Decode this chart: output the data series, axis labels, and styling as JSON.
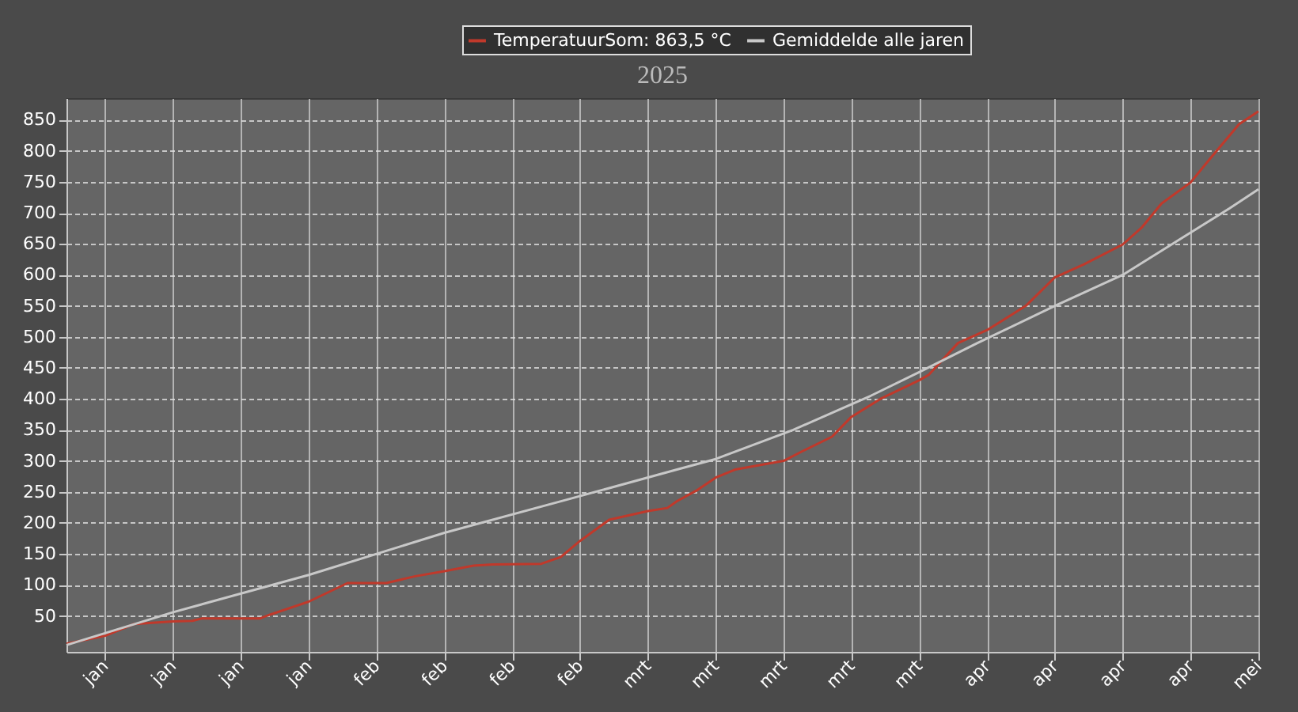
{
  "chart_data": {
    "type": "line",
    "title": "2025",
    "xlim": [
      "2025-01-01",
      "2025-05-04"
    ],
    "ylim": [
      -8,
      885
    ],
    "xticks": [
      {
        "value": "2025-01-05",
        "label": "jan"
      },
      {
        "value": "2025-01-12",
        "label": "jan"
      },
      {
        "value": "2025-01-19",
        "label": "jan"
      },
      {
        "value": "2025-01-26",
        "label": "jan"
      },
      {
        "value": "2025-02-02",
        "label": "feb"
      },
      {
        "value": "2025-02-09",
        "label": "feb"
      },
      {
        "value": "2025-02-16",
        "label": "feb"
      },
      {
        "value": "2025-02-23",
        "label": "feb"
      },
      {
        "value": "2025-03-02",
        "label": "mrt"
      },
      {
        "value": "2025-03-09",
        "label": "mrt"
      },
      {
        "value": "2025-03-16",
        "label": "mrt"
      },
      {
        "value": "2025-03-23",
        "label": "mrt"
      },
      {
        "value": "2025-03-30",
        "label": "mrt"
      },
      {
        "value": "2025-04-06",
        "label": "apr"
      },
      {
        "value": "2025-04-13",
        "label": "apr"
      },
      {
        "value": "2025-04-20",
        "label": "apr"
      },
      {
        "value": "2025-04-27",
        "label": "apr"
      },
      {
        "value": "2025-05-04",
        "label": "mei"
      }
    ],
    "yticks": [
      50,
      100,
      150,
      200,
      250,
      300,
      350,
      400,
      450,
      500,
      550,
      600,
      650,
      700,
      750,
      800,
      850
    ],
    "grid": true,
    "legend": "top",
    "marker": "none",
    "line_style": "solid",
    "series": [
      {
        "name": "TemperatuurSom: 863,5 °C",
        "color": "#c0392b",
        "x": [
          "2025-01-01",
          "2025-01-05",
          "2025-01-08",
          "2025-01-12",
          "2025-01-14",
          "2025-01-15",
          "2025-01-21",
          "2025-01-22",
          "2025-01-26",
          "2025-01-30",
          "2025-02-03",
          "2025-02-06",
          "2025-02-09",
          "2025-02-12",
          "2025-02-14",
          "2025-02-19",
          "2025-02-21",
          "2025-02-23",
          "2025-02-26",
          "2025-03-02",
          "2025-03-04",
          "2025-03-05",
          "2025-03-07",
          "2025-03-09",
          "2025-03-11",
          "2025-03-16",
          "2025-03-18",
          "2025-03-21",
          "2025-03-23",
          "2025-03-26",
          "2025-03-30",
          "2025-03-31",
          "2025-04-03",
          "2025-04-06",
          "2025-04-10",
          "2025-04-13",
          "2025-04-16",
          "2025-04-20",
          "2025-04-22",
          "2025-04-24",
          "2025-04-27",
          "2025-04-29",
          "2025-05-02",
          "2025-05-04"
        ],
        "values": [
          5,
          18,
          37,
          41,
          42,
          46,
          46,
          52,
          73,
          103,
          103,
          114,
          122,
          131,
          133,
          134,
          145,
          171,
          205,
          219,
          224,
          235,
          252,
          273,
          286,
          300,
          316,
          339,
          371,
          400,
          430,
          439,
          490,
          511,
          550,
          596,
          617,
          649,
          677,
          715,
          749,
          787,
          843,
          863.5
        ]
      },
      {
        "name": "Gemiddelde alle jaren",
        "color": "#c8c8c8",
        "x": [
          "2025-01-01",
          "2025-01-12",
          "2025-01-26",
          "2025-02-09",
          "2025-02-22",
          "2025-03-05",
          "2025-03-09",
          "2025-03-17",
          "2025-03-25",
          "2025-03-30",
          "2025-04-05",
          "2025-04-13",
          "2025-04-20",
          "2025-04-27",
          "2025-05-01",
          "2025-05-04"
        ],
        "values": [
          3,
          56,
          116,
          184,
          239,
          286,
          303,
          350,
          405,
          443,
          490,
          550,
          600,
          668,
          707,
          738
        ]
      }
    ]
  }
}
